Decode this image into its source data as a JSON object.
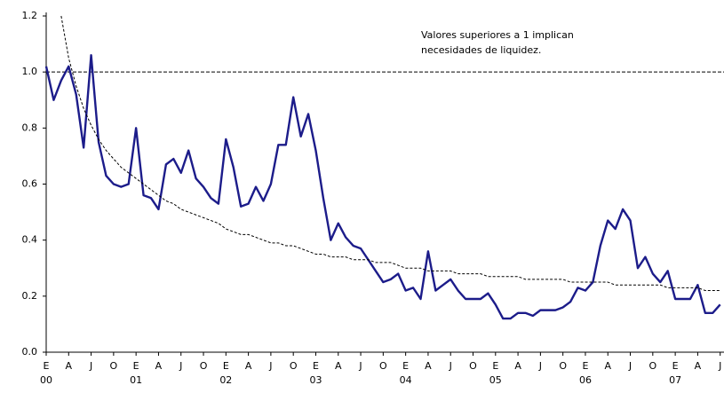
{
  "chart_data": {
    "type": "line",
    "annotation": [
      "Valores superiores a 1 implican",
      "necesidades de liquidez."
    ],
    "categories": [
      "E",
      null,
      null,
      "A",
      null,
      null,
      "J",
      null,
      null,
      "O",
      null,
      null,
      "E",
      null,
      null,
      "A",
      null,
      null,
      "J",
      null,
      null,
      "O",
      null,
      null,
      "E",
      null,
      null,
      "A",
      null,
      null,
      "J",
      null,
      null,
      "O",
      null,
      null,
      "E",
      null,
      null,
      "A",
      null,
      null,
      "J",
      null,
      null,
      "O",
      null,
      null,
      "E",
      null,
      null,
      "A",
      null,
      null,
      "J",
      null,
      null,
      "O",
      null,
      null,
      "E",
      null,
      null,
      "A",
      null,
      null,
      "J",
      null,
      null,
      "O",
      null,
      null,
      "E",
      null,
      null,
      "A",
      null,
      null,
      "J",
      null,
      null,
      "O",
      null,
      null,
      "E",
      null,
      null,
      "A",
      null,
      null,
      "J"
    ],
    "years": [
      "00",
      "01",
      "02",
      "03",
      "04",
      "05",
      "06",
      "07"
    ],
    "series": [
      {
        "color": "#1c1c8a",
        "values": [
          1.02,
          0.9,
          0.97,
          1.02,
          0.92,
          0.73,
          1.06,
          0.75,
          0.63,
          0.6,
          0.59,
          0.6,
          0.8,
          0.56,
          0.55,
          0.51,
          0.67,
          0.69,
          0.64,
          0.72,
          0.62,
          0.59,
          0.55,
          0.53,
          0.76,
          0.66,
          0.52,
          0.53,
          0.59,
          0.54,
          0.6,
          0.74,
          0.74,
          0.91,
          0.77,
          0.85,
          0.72,
          0.55,
          0.4,
          0.46,
          0.41,
          0.38,
          0.37,
          0.33,
          0.29,
          0.25,
          0.26,
          0.28,
          0.22,
          0.23,
          0.19,
          0.36,
          0.22,
          0.24,
          0.26,
          0.22,
          0.19,
          0.19,
          0.19,
          0.21,
          0.17,
          0.12,
          0.12,
          0.14,
          0.14,
          0.13,
          0.15,
          0.15,
          0.15,
          0.16,
          0.18,
          0.23,
          0.22,
          0.25,
          0.38,
          0.47,
          0.44,
          0.51,
          0.47,
          0.3,
          0.34,
          0.28,
          0.25,
          0.29,
          0.19,
          0.19,
          0.19,
          0.24,
          0.14,
          0.14,
          0.17
        ]
      },
      {
        "color": "#000000",
        "dashed": true,
        "values": [
          null,
          null,
          1.2,
          1.05,
          0.95,
          0.87,
          0.81,
          0.76,
          0.72,
          0.69,
          0.66,
          0.64,
          0.62,
          0.6,
          0.58,
          0.56,
          0.54,
          0.53,
          0.51,
          0.5,
          0.49,
          0.48,
          0.47,
          0.46,
          0.44,
          0.43,
          0.42,
          0.42,
          0.41,
          0.4,
          0.39,
          0.39,
          0.38,
          0.38,
          0.37,
          0.36,
          0.35,
          0.35,
          0.34,
          0.34,
          0.34,
          0.33,
          0.33,
          0.33,
          0.32,
          0.32,
          0.32,
          0.31,
          0.3,
          0.3,
          0.3,
          0.29,
          0.29,
          0.29,
          0.29,
          0.28,
          0.28,
          0.28,
          0.28,
          0.27,
          0.27,
          0.27,
          0.27,
          0.27,
          0.26,
          0.26,
          0.26,
          0.26,
          0.26,
          0.26,
          0.25,
          0.25,
          0.25,
          0.25,
          0.25,
          0.25,
          0.24,
          0.24,
          0.24,
          0.24,
          0.24,
          0.24,
          0.24,
          0.23,
          0.23,
          0.23,
          0.23,
          0.23,
          0.22,
          0.22,
          0.22
        ]
      }
    ],
    "reference_line": 1.0,
    "ylim": [
      0,
      1.2
    ],
    "yticks": [
      {
        "value": 0,
        "label": "0.0"
      },
      0.2,
      0.4,
      0.6,
      0.8,
      {
        "value": 1,
        "label": "1.0"
      },
      1.2
    ],
    "grid": false
  }
}
